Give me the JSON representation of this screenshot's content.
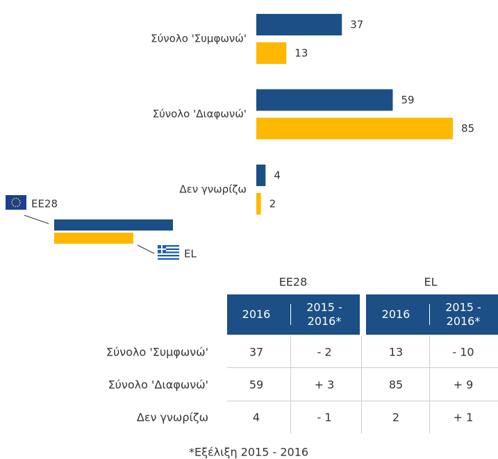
{
  "chart_data": {
    "type": "bar",
    "categories": [
      "Σύνολο 'Συμφωνώ'",
      "Σύνολο 'Διαφωνώ'",
      "Δεν γνωρίζω"
    ],
    "series": [
      {
        "name": "EE28",
        "color": "#1b4f85",
        "values": [
          37,
          59,
          4
        ]
      },
      {
        "name": "EL",
        "color": "#ffb800",
        "values": [
          13,
          85,
          2
        ]
      }
    ]
  },
  "table": {
    "groups": [
      "EE28",
      "EL"
    ],
    "columns": [
      "2016",
      "2015 - 2016*"
    ],
    "rows": [
      [
        "Σύνολο 'Συμφωνώ'",
        37,
        "- 2",
        13,
        "- 10"
      ],
      [
        "Σύνολο 'Διαφωνώ'",
        59,
        "+ 3",
        85,
        "+ 9"
      ],
      [
        "Δεν γνωρίζω",
        4,
        "- 1",
        2,
        "+ 1"
      ]
    ],
    "footnote": "*Εξέλιξη 2015 - 2016"
  }
}
